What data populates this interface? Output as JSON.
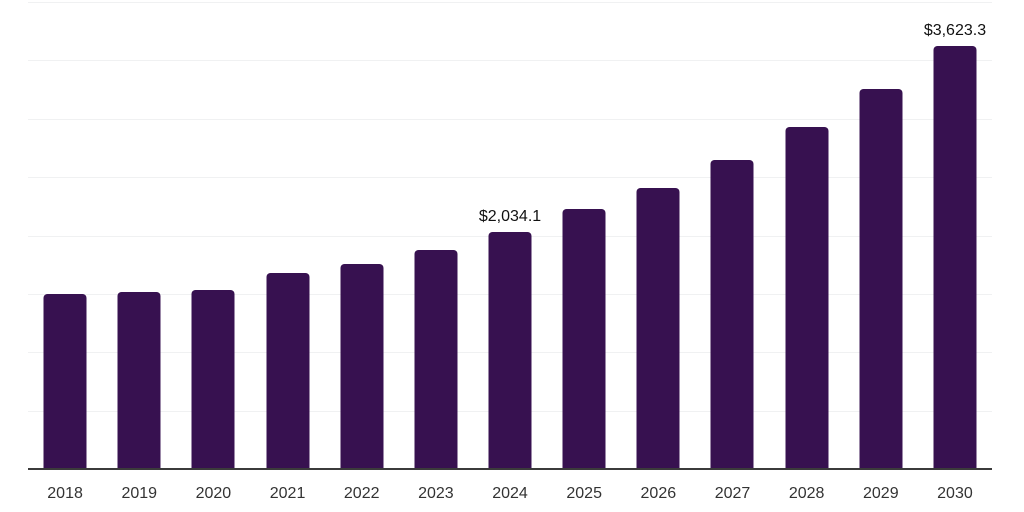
{
  "chart_data": {
    "type": "bar",
    "title": "",
    "xlabel": "",
    "ylabel": "",
    "categories": [
      "2018",
      "2019",
      "2020",
      "2021",
      "2022",
      "2023",
      "2024",
      "2025",
      "2026",
      "2027",
      "2028",
      "2029",
      "2030"
    ],
    "values": [
      1495,
      1520,
      1535,
      1680,
      1760,
      1880,
      2034.1,
      2230,
      2410,
      2650,
      2930,
      3255,
      3623.3
    ],
    "value_labels": {
      "2024": "$2,034.1",
      "2030": "$3,623.3"
    },
    "ylim": [
      0,
      4000
    ],
    "gridline_interval": 500,
    "grid": "horizontal-only",
    "y_axis_tick_labels_visible": false,
    "legend": "none",
    "colors": {
      "bar": "#371150",
      "gridline": "#f0f1f2",
      "axis_line": "#3b3b3b",
      "value_label_text": "#111111",
      "tick_label_text": "#333333",
      "background": "#ffffff"
    }
  }
}
